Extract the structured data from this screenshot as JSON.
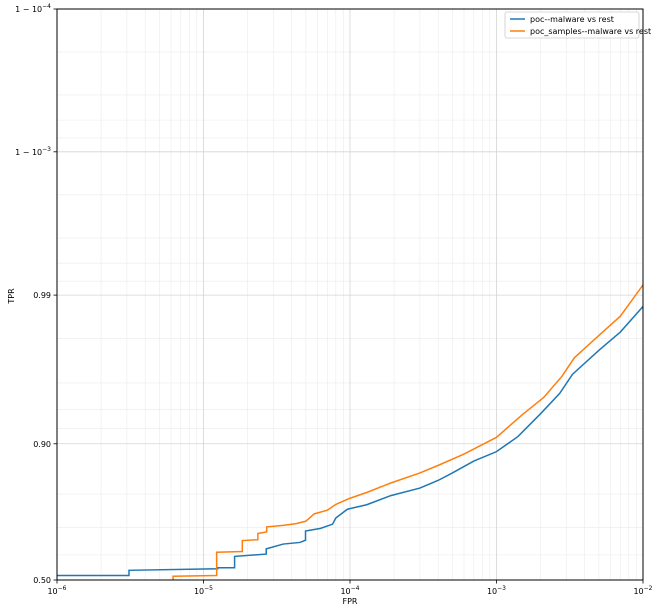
{
  "chart_data": {
    "type": "line",
    "xlabel": "FPR",
    "ylabel": "TPR",
    "x_scale": "log",
    "y_scale": "logit",
    "xlim": [
      1e-06,
      0.01
    ],
    "ylim": [
      0.5,
      0.9999
    ],
    "grid": true,
    "legend_position": "top-right",
    "x_ticks": [
      {
        "value": 1e-06,
        "base": "10",
        "exp": "−6"
      },
      {
        "value": 1e-05,
        "base": "10",
        "exp": "−5"
      },
      {
        "value": 0.0001,
        "base": "10",
        "exp": "−4"
      },
      {
        "value": 0.001,
        "base": "10",
        "exp": "−3"
      },
      {
        "value": 0.01,
        "base": "10",
        "exp": "−2"
      }
    ],
    "y_ticks": [
      {
        "value": 0.5,
        "label": "0.50",
        "base": "",
        "exp": ""
      },
      {
        "value": 0.9,
        "label": "0.90",
        "base": "",
        "exp": ""
      },
      {
        "value": 0.99,
        "label": "0.99",
        "base": "",
        "exp": ""
      },
      {
        "value": 0.999,
        "label": "1 − 10",
        "base": "1 − 10",
        "exp": "−3"
      },
      {
        "value": 0.9999,
        "label": "1 − 10",
        "base": "1 − 10",
        "exp": "−4"
      }
    ],
    "series": [
      {
        "name": "poc--malware vs rest",
        "color": "#1f77b4",
        "steps": [
          [
            1e-06,
            0.518
          ],
          [
            3.1e-06,
            0.518
          ],
          [
            3.1e-06,
            0.539
          ],
          [
            1.25e-05,
            0.545
          ],
          [
            1.25e-05,
            0.549
          ],
          [
            1.63e-05,
            0.549
          ],
          [
            1.63e-05,
            0.594
          ],
          [
            2.68e-05,
            0.603
          ],
          [
            2.68e-05,
            0.623
          ],
          [
            3.5e-05,
            0.641
          ],
          [
            4.55e-05,
            0.647
          ],
          [
            4.97e-05,
            0.655
          ],
          [
            4.97e-05,
            0.688
          ],
          [
            6.3e-05,
            0.697
          ],
          [
            7.6e-05,
            0.711
          ],
          [
            8e-05,
            0.731
          ],
          [
            9.6e-05,
            0.758
          ],
          [
            0.00013,
            0.771
          ],
          [
            0.00019,
            0.796
          ],
          [
            0.0003,
            0.815
          ],
          [
            0.0004,
            0.833
          ],
          [
            0.0005,
            0.849
          ],
          [
            0.0007,
            0.872
          ],
          [
            0.001,
            0.888
          ],
          [
            0.0014,
            0.91
          ],
          [
            0.002,
            0.936
          ],
          [
            0.0027,
            0.953
          ],
          [
            0.0033,
            0.965
          ],
          [
            0.005,
            0.976
          ],
          [
            0.007,
            0.982
          ],
          [
            0.01,
            0.988
          ]
        ]
      },
      {
        "name": "poc_samples--malware vs rest",
        "color": "#ff7f0e",
        "steps": [
          [
            6.2e-06,
            0.5
          ],
          [
            6.2e-06,
            0.515
          ],
          [
            1.23e-05,
            0.518
          ],
          [
            1.23e-05,
            0.61
          ],
          [
            1.84e-05,
            0.613
          ],
          [
            1.84e-05,
            0.654
          ],
          [
            2.35e-05,
            0.657
          ],
          [
            2.35e-05,
            0.679
          ],
          [
            2.7e-05,
            0.685
          ],
          [
            2.7e-05,
            0.702
          ],
          [
            3.5e-05,
            0.707
          ],
          [
            4.3e-05,
            0.713
          ],
          [
            5e-05,
            0.721
          ],
          [
            5.7e-05,
            0.744
          ],
          [
            7e-05,
            0.755
          ],
          [
            8e-05,
            0.772
          ],
          [
            0.0001,
            0.789
          ],
          [
            0.00013,
            0.804
          ],
          [
            0.00019,
            0.827
          ],
          [
            0.0003,
            0.849
          ],
          [
            0.0004,
            0.864
          ],
          [
            0.0006,
            0.884
          ],
          [
            0.001,
            0.909
          ],
          [
            0.0015,
            0.935
          ],
          [
            0.0021,
            0.95
          ],
          [
            0.0028,
            0.964
          ],
          [
            0.0034,
            0.973
          ],
          [
            0.005,
            0.981
          ],
          [
            0.007,
            0.986
          ],
          [
            0.01,
            0.9915
          ]
        ]
      }
    ]
  }
}
